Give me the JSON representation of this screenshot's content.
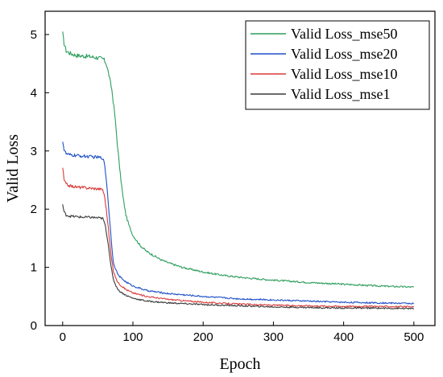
{
  "chart_data": {
    "type": "line",
    "title": "",
    "xlabel": "Epoch",
    "ylabel": "Valid Loss",
    "xlim": [
      -25,
      530
    ],
    "ylim": [
      0,
      5.4
    ],
    "xticks": [
      0,
      100,
      200,
      300,
      400,
      500
    ],
    "yticks": [
      0,
      1,
      2,
      3,
      4,
      5
    ],
    "grid": false,
    "legend_position": "top-right",
    "series": [
      {
        "name": "Valid Loss_mse50",
        "color": "#2e9e5e",
        "points": [
          [
            0,
            5.02
          ],
          [
            2,
            4.85
          ],
          [
            5,
            4.72
          ],
          [
            10,
            4.68
          ],
          [
            20,
            4.64
          ],
          [
            30,
            4.63
          ],
          [
            40,
            4.62
          ],
          [
            50,
            4.6
          ],
          [
            58,
            4.58
          ],
          [
            62,
            4.5
          ],
          [
            66,
            4.3
          ],
          [
            70,
            4.05
          ],
          [
            74,
            3.65
          ],
          [
            78,
            3.1
          ],
          [
            82,
            2.6
          ],
          [
            86,
            2.2
          ],
          [
            90,
            1.9
          ],
          [
            95,
            1.7
          ],
          [
            100,
            1.55
          ],
          [
            110,
            1.38
          ],
          [
            120,
            1.27
          ],
          [
            130,
            1.2
          ],
          [
            140,
            1.13
          ],
          [
            150,
            1.08
          ],
          [
            170,
            1.0
          ],
          [
            200,
            0.92
          ],
          [
            230,
            0.86
          ],
          [
            260,
            0.82
          ],
          [
            300,
            0.78
          ],
          [
            350,
            0.74
          ],
          [
            400,
            0.71
          ],
          [
            450,
            0.68
          ],
          [
            500,
            0.66
          ]
        ]
      },
      {
        "name": "Valid Loss_mse20",
        "color": "#1f4fc8",
        "points": [
          [
            0,
            3.18
          ],
          [
            2,
            3.02
          ],
          [
            5,
            2.95
          ],
          [
            10,
            2.93
          ],
          [
            20,
            2.92
          ],
          [
            30,
            2.91
          ],
          [
            40,
            2.9
          ],
          [
            50,
            2.89
          ],
          [
            57,
            2.88
          ],
          [
            60,
            2.75
          ],
          [
            63,
            2.4
          ],
          [
            66,
            1.95
          ],
          [
            69,
            1.5
          ],
          [
            72,
            1.1
          ],
          [
            76,
            0.95
          ],
          [
            80,
            0.85
          ],
          [
            90,
            0.75
          ],
          [
            100,
            0.68
          ],
          [
            120,
            0.6
          ],
          [
            150,
            0.55
          ],
          [
            200,
            0.5
          ],
          [
            250,
            0.46
          ],
          [
            300,
            0.44
          ],
          [
            350,
            0.42
          ],
          [
            400,
            0.4
          ],
          [
            450,
            0.39
          ],
          [
            500,
            0.38
          ]
        ]
      },
      {
        "name": "Valid Loss_mse10",
        "color": "#d83a3a",
        "points": [
          [
            0,
            2.72
          ],
          [
            2,
            2.5
          ],
          [
            5,
            2.43
          ],
          [
            10,
            2.4
          ],
          [
            20,
            2.38
          ],
          [
            30,
            2.37
          ],
          [
            40,
            2.36
          ],
          [
            50,
            2.35
          ],
          [
            57,
            2.34
          ],
          [
            60,
            2.2
          ],
          [
            63,
            1.9
          ],
          [
            66,
            1.55
          ],
          [
            69,
            1.2
          ],
          [
            72,
            0.95
          ],
          [
            76,
            0.8
          ],
          [
            80,
            0.72
          ],
          [
            90,
            0.62
          ],
          [
            100,
            0.56
          ],
          [
            120,
            0.5
          ],
          [
            150,
            0.45
          ],
          [
            200,
            0.4
          ],
          [
            250,
            0.37
          ],
          [
            300,
            0.35
          ],
          [
            350,
            0.34
          ],
          [
            400,
            0.33
          ],
          [
            450,
            0.33
          ],
          [
            500,
            0.32
          ]
        ]
      },
      {
        "name": "Valid Loss_mse1",
        "color": "#3a3a3a",
        "points": [
          [
            0,
            2.08
          ],
          [
            2,
            1.95
          ],
          [
            5,
            1.9
          ],
          [
            10,
            1.88
          ],
          [
            20,
            1.87
          ],
          [
            30,
            1.86
          ],
          [
            40,
            1.86
          ],
          [
            50,
            1.85
          ],
          [
            57,
            1.84
          ],
          [
            60,
            1.75
          ],
          [
            63,
            1.55
          ],
          [
            66,
            1.3
          ],
          [
            69,
            1.0
          ],
          [
            72,
            0.8
          ],
          [
            76,
            0.68
          ],
          [
            80,
            0.6
          ],
          [
            90,
            0.52
          ],
          [
            100,
            0.47
          ],
          [
            120,
            0.42
          ],
          [
            150,
            0.39
          ],
          [
            200,
            0.36
          ],
          [
            250,
            0.34
          ],
          [
            300,
            0.32
          ],
          [
            350,
            0.31
          ],
          [
            400,
            0.3
          ],
          [
            450,
            0.3
          ],
          [
            500,
            0.29
          ]
        ]
      }
    ]
  }
}
